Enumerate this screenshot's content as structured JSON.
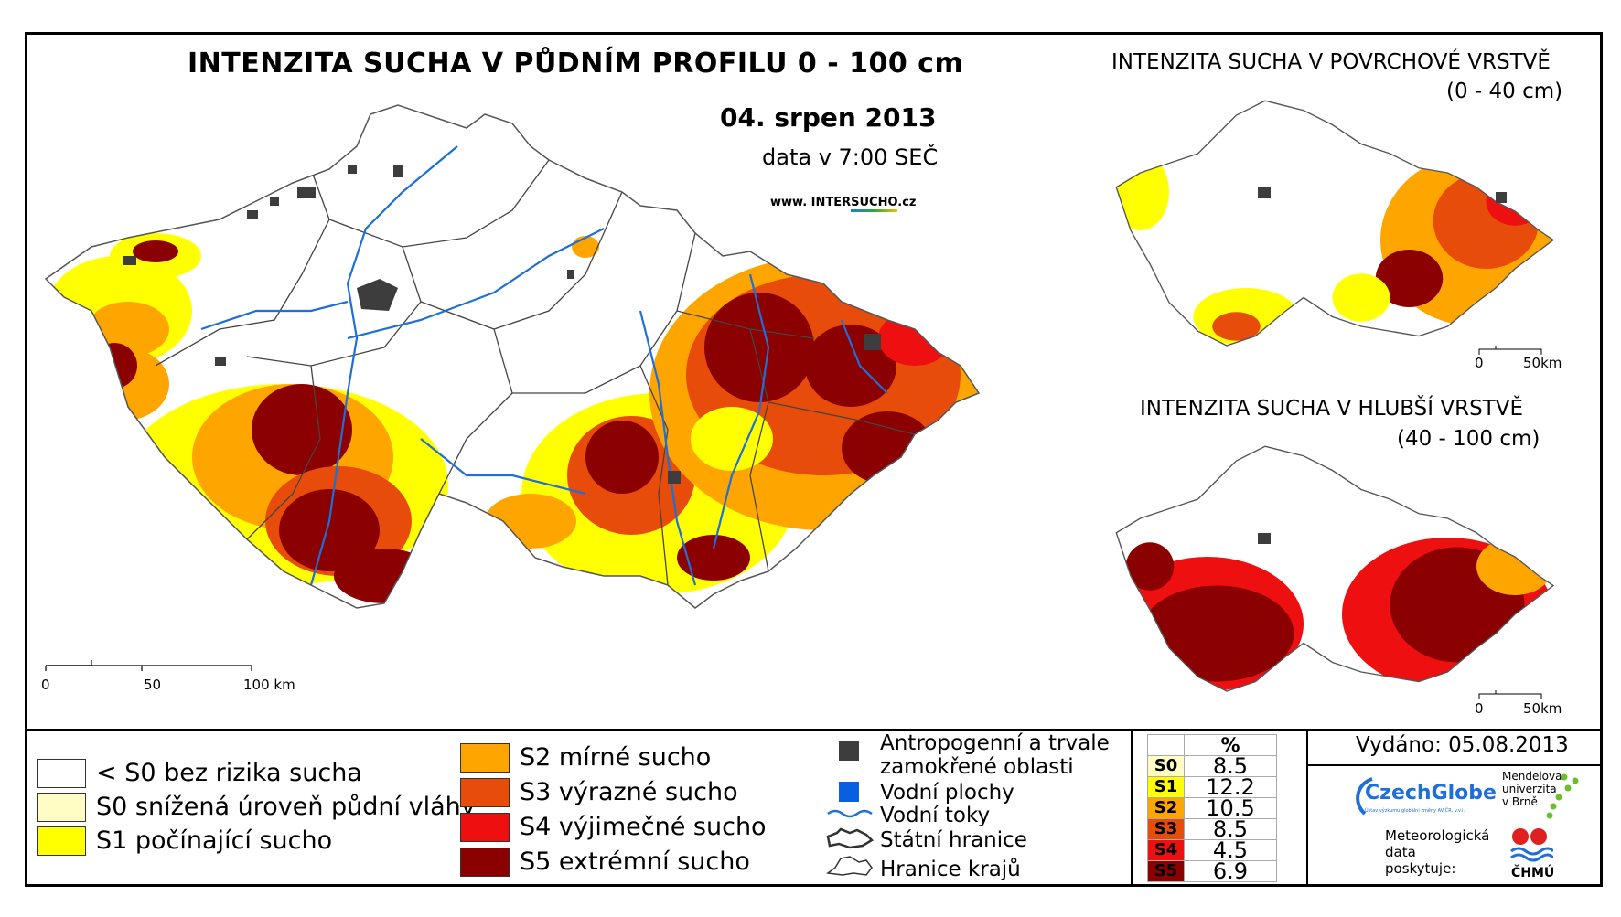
{
  "title": "INTENZITA SUCHA V PŮDNÍM PROFILU 0 - 100 cm",
  "date": "04. srpen 2013",
  "time": "data v 7:00 SEČ",
  "web": {
    "prefix": "www. INTER",
    "highlight": "SUCHO",
    "suffix": ".cz"
  },
  "inset_top": {
    "title": "INTENZITA SUCHA V POVRCHOVÉ VRSTVĚ",
    "range": "(0 - 40 cm)"
  },
  "inset_bottom": {
    "title": "INTENZITA SUCHA V HLUBŠÍ VRSTVĚ",
    "range": "(40 - 100 cm)"
  },
  "scale_main": {
    "t0": "0",
    "t1": "50",
    "t2": "100 km"
  },
  "scale_inset": {
    "t0": "0",
    "t1": "50km"
  },
  "legend": {
    "classes": [
      {
        "label": "< S0 bez rizika sucha",
        "color": "#ffffff"
      },
      {
        "label": "S0 snížená úroveň půdní vláhy",
        "color": "#fffdc4"
      },
      {
        "label": "S1 počínající sucho",
        "color": "#ffff00"
      },
      {
        "label": "S2 mírné sucho",
        "color": "#ffa500"
      },
      {
        "label": "S3 výrazné sucho",
        "color": "#e84c0a"
      },
      {
        "label": "S4 výjimečné sucho",
        "color": "#ee1010"
      },
      {
        "label": "S5 extrémní sucho",
        "color": "#8b0000"
      }
    ],
    "other": {
      "anthro": "Antropogenní a trvale",
      "anthro2": "zamokřené oblasti",
      "water_area": "Vodní plochy",
      "streams": "Vodní toky",
      "border": "Státní hranice",
      "regions": "Hranice krajů"
    },
    "other_colors": {
      "anthro": "#3d3d3d",
      "water": "#0a5fe0",
      "stream": "#1e6fd8"
    }
  },
  "stats": {
    "header": "%",
    "rows": [
      {
        "cls": "S0",
        "value": "8.5",
        "color": "#fffdc4"
      },
      {
        "cls": "S1",
        "value": "12.2",
        "color": "#ffff00"
      },
      {
        "cls": "S2",
        "value": "10.5",
        "color": "#ffa500"
      },
      {
        "cls": "S3",
        "value": "8.5",
        "color": "#e84c0a"
      },
      {
        "cls": "S4",
        "value": "4.5",
        "color": "#ee1010"
      },
      {
        "cls": "S5",
        "value": "6.9",
        "color": "#8b0000"
      }
    ]
  },
  "issued": "Vydáno: 05.08.2013",
  "logos": {
    "czechglobe": "CzechGlobe",
    "czechglobe_sub": "Ústav výzkumu globální změny AV ČR, v.v.i.",
    "mendel1": "Mendelova",
    "mendel2": "univerzita",
    "mendel3": "v Brně",
    "meteo1": "Meteorologická",
    "meteo2": "data",
    "meteo3": "poskytuje:",
    "chmu": "ČHMÚ"
  }
}
